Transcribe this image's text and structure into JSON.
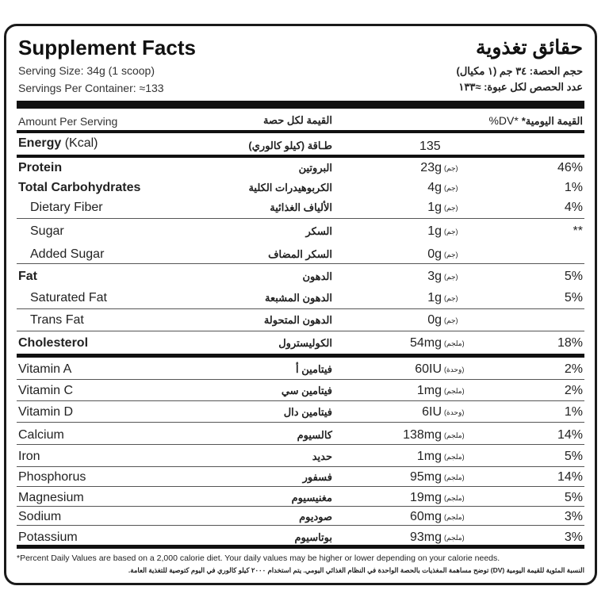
{
  "header": {
    "title": "Supplement Facts",
    "title_ar": "حقائق تغذوية",
    "serving_size": "Serving Size: 34g (1 scoop)",
    "serving_size_ar": "حجم الحصة: ٣٤ جم (١ مكيال)",
    "servings_per_container": "Servings Per Container: ≈133",
    "servings_per_container_ar": "عدد الحصص لكل عبوة: ≈١٣٣"
  },
  "columns": {
    "amount": "Amount Per Serving",
    "amount_ar": "القيمة لكل حصة",
    "dv": "%DV*",
    "dv_ar": "القيمة اليومية*"
  },
  "energy": {
    "label": "Energy",
    "unit": "(Kcal)",
    "label_ar": "طـاقة (كيلو كالوري)",
    "value": "135"
  },
  "nutrients": [
    {
      "en": "Protein",
      "ar": "البروتين",
      "amount": "23g",
      "unit_ar": "(جم)",
      "dv": "46%",
      "bold": true
    },
    {
      "en": "Total Carbohydrates",
      "ar": "الكربوهيدرات الكلية",
      "amount": "4g",
      "unit_ar": "(جم)",
      "dv": "1%",
      "bold": true
    },
    {
      "en": "Dietary Fiber",
      "ar": "الألياف الغذائية",
      "amount": "1g",
      "unit_ar": "(جم)",
      "dv": "4%",
      "indent": true
    },
    {
      "en": "Sugar",
      "ar": "السكر",
      "amount": "1g",
      "unit_ar": "(جم)",
      "dv": "**",
      "indent": true
    },
    {
      "en": "Added Sugar",
      "ar": "السكر المضاف",
      "amount": "0g",
      "unit_ar": "(جم)",
      "dv": "",
      "indent": true
    },
    {
      "en": "Fat",
      "ar": "الدهون",
      "amount": "3g",
      "unit_ar": "(جم)",
      "dv": "5%",
      "bold": true
    },
    {
      "en": "Saturated Fat",
      "ar": "الدهون المشبعة",
      "amount": "1g",
      "unit_ar": "(جم)",
      "dv": "5%",
      "indent": true
    },
    {
      "en": "Trans Fat",
      "ar": "الدهون المتحولة",
      "amount": "0g",
      "unit_ar": "(جم)",
      "dv": "",
      "indent": true
    },
    {
      "en": "Cholesterol",
      "ar": "الكوليسترول",
      "amount": "54mg",
      "unit_ar": "(ملجم)",
      "dv": "18%",
      "bold": true
    }
  ],
  "minerals": [
    {
      "en": "Vitamin A",
      "ar": "فيتامين أ",
      "amount": "60IU",
      "unit_ar": "(وحدة)",
      "dv": "2%"
    },
    {
      "en": "Vitamin C",
      "ar": "فيتامين سي",
      "amount": "1mg",
      "unit_ar": "(ملجم)",
      "dv": "2%"
    },
    {
      "en": "Vitamin D",
      "ar": "فيتامين دال",
      "amount": "6IU",
      "unit_ar": "(وحدة)",
      "dv": "1%"
    },
    {
      "en": "Calcium",
      "ar": "كالسيوم",
      "amount": "138mg",
      "unit_ar": "(ملجم)",
      "dv": "14%"
    },
    {
      "en": "Iron",
      "ar": "حديد",
      "amount": "1mg",
      "unit_ar": "(ملجم)",
      "dv": "5%"
    },
    {
      "en": "Phosphorus",
      "ar": "فسفور",
      "amount": "95mg",
      "unit_ar": "(ملجم)",
      "dv": "14%"
    },
    {
      "en": "Magnesium",
      "ar": "مغنيسيوم",
      "amount": "19mg",
      "unit_ar": "(ملجم)",
      "dv": "5%"
    },
    {
      "en": "Sodium",
      "ar": "صوديوم",
      "amount": "60mg",
      "unit_ar": "(ملجم)",
      "dv": "3%"
    },
    {
      "en": "Potassium",
      "ar": "بوتاسيوم",
      "amount": "93mg",
      "unit_ar": "(ملجم)",
      "dv": "3%"
    }
  ],
  "footer": {
    "en": "*Percent Daily Values are based on a 2,000 calorie diet. Your daily values may be higher or lower depending on your calorie needs.",
    "ar": "النسبة المئوية للقيمة اليومية (DV) توضح مساهمة المغذيات بالحصة الواحدة في النظام الغذائي اليومي. يتم استخدام ٢٠٠٠ كيلو كالوري في اليوم كتوصية للتغذية العامة."
  }
}
